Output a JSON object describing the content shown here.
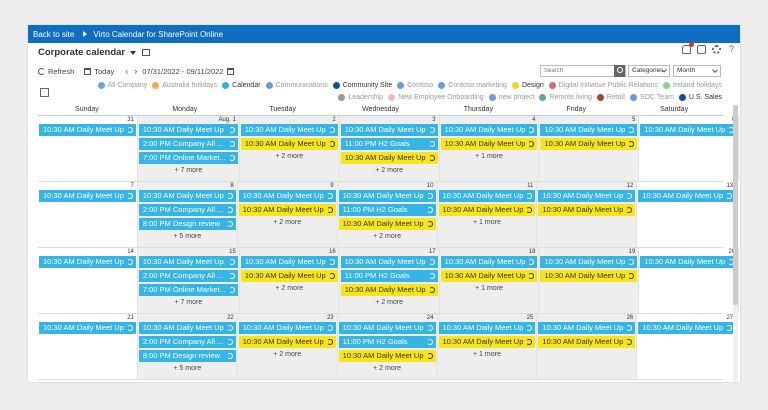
{
  "topbar": {
    "back": "Back to site",
    "app_title": "Virto Calendar for SharePoint Online"
  },
  "header": {
    "title": "Corporate calendar"
  },
  "toolbar": {
    "refresh": "Refresh",
    "today": "Today",
    "date_range": "07/31/2022 - 09/11/2022"
  },
  "search": {
    "placeholder": "Search"
  },
  "dropdowns": {
    "categories": "Categories",
    "view": "Month"
  },
  "legend": [
    {
      "label": "All Company",
      "color": "#6fa3db",
      "dim": true
    },
    {
      "label": "Australia holidays",
      "color": "#f6a64b",
      "dim": true
    },
    {
      "label": "Calendar",
      "color": "#2db1e3",
      "dim": false
    },
    {
      "label": "Communications",
      "color": "#6b9bd6",
      "dim": true
    },
    {
      "label": "Community Site",
      "color": "#0b5394",
      "dim": false
    },
    {
      "label": "Contoso",
      "color": "#6b9bd6",
      "dim": true
    },
    {
      "label": "Contoso marketing",
      "color": "#6b9bd6",
      "dim": true
    },
    {
      "label": "Design",
      "color": "#f3d21b",
      "dim": false
    },
    {
      "label": "Digital Initiative Public Relations",
      "color": "#d76b6b",
      "dim": true
    },
    {
      "label": "Ireland holidays",
      "color": "#8fd08f",
      "dim": true
    },
    {
      "label": "Leadership",
      "color": "#999999",
      "dim": true
    },
    {
      "label": "New Employee Onboarding",
      "color": "#f0b8d0",
      "dim": true
    },
    {
      "label": "new project",
      "color": "#6b9bd6",
      "dim": true
    },
    {
      "label": "Remote living",
      "color": "#5aa8a8",
      "dim": true
    },
    {
      "label": "Retail",
      "color": "#a8403a",
      "dim": true
    },
    {
      "label": "SOC Team",
      "color": "#6b9bd6",
      "dim": true
    },
    {
      "label": "U.S. Sales",
      "color": "#0b5394",
      "dim": false
    }
  ],
  "days": [
    "Sunday",
    "Monday",
    "Tuesday",
    "Wednesday",
    "Thursday",
    "Friday",
    "Saturday"
  ],
  "weeks": [
    {
      "dates": [
        "31",
        "Aug. 1",
        "2",
        "3",
        "4",
        "5",
        "6"
      ],
      "cells": [
        {
          "events": [
            {
              "t": "10:30 AM Daily Meet Up",
              "c": "blue"
            }
          ],
          "more": ""
        },
        {
          "events": [
            {
              "t": "10:30 AM Daily Meet Up",
              "c": "blue"
            },
            {
              "t": "2:00 PM Company All ...",
              "c": "blue"
            },
            {
              "t": "7:00 PM Online Market...",
              "c": "blue"
            }
          ],
          "more": "+ 7 more"
        },
        {
          "events": [
            {
              "t": "10:30 AM Daily Meet Up",
              "c": "blue"
            },
            {
              "t": "10:30 AM Daily Meet Up",
              "c": "yellow"
            }
          ],
          "more": "+ 2 more"
        },
        {
          "events": [
            {
              "t": "10:30 AM Daily Meet Up",
              "c": "blue"
            },
            {
              "t": "11:00 PM H2 Goals",
              "c": "blue"
            },
            {
              "t": "10:30 AM Daily Meet Up",
              "c": "yellow"
            }
          ],
          "more": "+ 2 more"
        },
        {
          "events": [
            {
              "t": "10:30 AM Daily Meet Up",
              "c": "blue"
            },
            {
              "t": "10:30 AM Daily Meet Up",
              "c": "yellow"
            }
          ],
          "more": "+ 1 more"
        },
        {
          "events": [
            {
              "t": "10:30 AM Daily Meet Up",
              "c": "blue"
            },
            {
              "t": "10:30 AM Daily Meet Up",
              "c": "yellow"
            }
          ],
          "more": ""
        },
        {
          "events": [
            {
              "t": "10:30 AM Daily Meet Up",
              "c": "blue"
            }
          ],
          "more": ""
        }
      ]
    },
    {
      "dates": [
        "7",
        "8",
        "9",
        "10",
        "11",
        "12",
        "13"
      ],
      "cells": [
        {
          "events": [
            {
              "t": "10:30 AM Daily Meet Up",
              "c": "blue"
            }
          ],
          "more": ""
        },
        {
          "events": [
            {
              "t": "10:30 AM Daily Meet Up",
              "c": "blue"
            },
            {
              "t": "2:00 PM Company All ...",
              "c": "blue"
            },
            {
              "t": "8:00 PM Design review",
              "c": "blue"
            }
          ],
          "more": "+ 5 more"
        },
        {
          "events": [
            {
              "t": "10:30 AM Daily Meet Up",
              "c": "blue"
            },
            {
              "t": "10:30 AM Daily Meet Up",
              "c": "yellow"
            }
          ],
          "more": "+ 2 more"
        },
        {
          "events": [
            {
              "t": "10:30 AM Daily Meet Up",
              "c": "blue"
            },
            {
              "t": "11:00 PM H2 Goals",
              "c": "blue"
            },
            {
              "t": "10:30 AM Daily Meet Up",
              "c": "yellow"
            }
          ],
          "more": "+ 2 more"
        },
        {
          "events": [
            {
              "t": "10:30 AM Daily Meet Up",
              "c": "blue"
            },
            {
              "t": "10:30 AM Daily Meet Up",
              "c": "yellow"
            }
          ],
          "more": "+ 1 more"
        },
        {
          "events": [
            {
              "t": "10:30 AM Daily Meet Up",
              "c": "blue"
            },
            {
              "t": "10:30 AM Daily Meet Up",
              "c": "yellow"
            }
          ],
          "more": ""
        },
        {
          "events": [
            {
              "t": "10:30 AM Daily Meet Up",
              "c": "blue"
            }
          ],
          "more": ""
        }
      ]
    },
    {
      "dates": [
        "14",
        "15",
        "16",
        "17",
        "18",
        "19",
        "20"
      ],
      "cells": [
        {
          "events": [
            {
              "t": "10:30 AM Daily Meet Up",
              "c": "blue"
            }
          ],
          "more": ""
        },
        {
          "events": [
            {
              "t": "10:30 AM Daily Meet Up",
              "c": "blue"
            },
            {
              "t": "2:00 PM Company All ...",
              "c": "blue"
            },
            {
              "t": "7:00 PM Online Market...",
              "c": "blue"
            }
          ],
          "more": "+ 7 more"
        },
        {
          "events": [
            {
              "t": "10:30 AM Daily Meet Up",
              "c": "blue"
            },
            {
              "t": "10:30 AM Daily Meet Up",
              "c": "yellow"
            }
          ],
          "more": "+ 2 more"
        },
        {
          "events": [
            {
              "t": "10:30 AM Daily Meet Up",
              "c": "blue"
            },
            {
              "t": "11:00 PM H2 Goals",
              "c": "blue"
            },
            {
              "t": "10:30 AM Daily Meet Up",
              "c": "yellow"
            }
          ],
          "more": "+ 2 more"
        },
        {
          "events": [
            {
              "t": "10:30 AM Daily Meet Up",
              "c": "blue"
            },
            {
              "t": "10:30 AM Daily Meet Up",
              "c": "yellow"
            }
          ],
          "more": "+ 1 more"
        },
        {
          "events": [
            {
              "t": "10:30 AM Daily Meet Up",
              "c": "blue"
            },
            {
              "t": "10:30 AM Daily Meet Up",
              "c": "yellow"
            }
          ],
          "more": ""
        },
        {
          "events": [
            {
              "t": "10:30 AM Daily Meet Up",
              "c": "blue"
            }
          ],
          "more": ""
        }
      ]
    },
    {
      "dates": [
        "21",
        "22",
        "23",
        "24",
        "25",
        "26",
        "27"
      ],
      "cells": [
        {
          "events": [
            {
              "t": "10:30 AM Daily Meet Up",
              "c": "blue"
            }
          ],
          "more": ""
        },
        {
          "events": [
            {
              "t": "10:30 AM Daily Meet Up",
              "c": "blue"
            },
            {
              "t": "2:00 PM Company All ...",
              "c": "blue"
            },
            {
              "t": "8:00 PM Design review",
              "c": "blue"
            }
          ],
          "more": "+ 5 more"
        },
        {
          "events": [
            {
              "t": "10:30 AM Daily Meet Up",
              "c": "blue"
            },
            {
              "t": "10:30 AM Daily Meet Up",
              "c": "yellow"
            }
          ],
          "more": "+ 2 more"
        },
        {
          "events": [
            {
              "t": "10:30 AM Daily Meet Up",
              "c": "blue"
            },
            {
              "t": "11:00 PM H2 Goals",
              "c": "blue"
            },
            {
              "t": "10:30 AM Daily Meet Up",
              "c": "yellow"
            }
          ],
          "more": "+ 2 more"
        },
        {
          "events": [
            {
              "t": "10:30 AM Daily Meet Up",
              "c": "blue"
            },
            {
              "t": "10:30 AM Daily Meet Up",
              "c": "yellow"
            }
          ],
          "more": "+ 1 more"
        },
        {
          "events": [
            {
              "t": "10:30 AM Daily Meet Up",
              "c": "blue"
            },
            {
              "t": "10:30 AM Daily Meet Up",
              "c": "yellow"
            }
          ],
          "more": ""
        },
        {
          "events": [
            {
              "t": "10:30 AM Daily Meet Up",
              "c": "blue"
            }
          ],
          "more": ""
        }
      ]
    }
  ]
}
